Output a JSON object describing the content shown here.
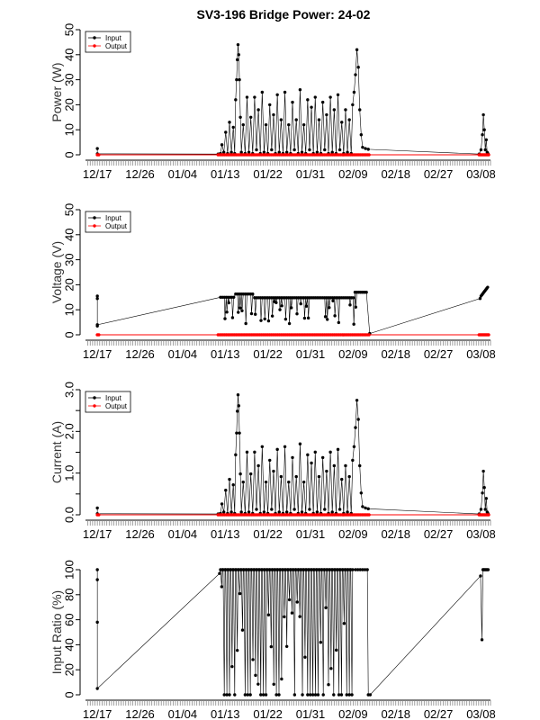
{
  "chart_data": {
    "type": "line",
    "title": "SV3-196 Bridge Power: 24-02",
    "x_tick_labels": [
      "12/17",
      "12/26",
      "01/04",
      "01/13",
      "01/22",
      "01/31",
      "02/09",
      "02/18",
      "02/27",
      "03/08"
    ],
    "x_tick_days": [
      0,
      9,
      18,
      27,
      36,
      45,
      54,
      63,
      72,
      81
    ],
    "x_range_days": [
      -2.5,
      83
    ],
    "legend": [
      "Input",
      "Output"
    ],
    "colors": {
      "input": "#000000",
      "output": "#ff0000",
      "axis": "#000000",
      "tickband": "#888888"
    },
    "panels": [
      {
        "name": "power",
        "ylabel": "Power (W)",
        "ylim": [
          0,
          50
        ],
        "yticks": [
          0,
          10,
          20,
          30,
          40,
          50
        ],
        "ytick_labels": [
          "0",
          "10",
          "20",
          "30",
          "40",
          "50"
        ],
        "gen": "power",
        "input_points": [
          [
            0,
            2.5
          ],
          [
            0,
            0.4
          ],
          [
            25.5,
            0.3
          ],
          [
            26,
            0.5
          ],
          [
            26.3,
            4
          ],
          [
            26.7,
            1
          ],
          [
            27.1,
            9
          ],
          [
            27.5,
            0.5
          ],
          [
            27.9,
            13
          ],
          [
            28.3,
            1
          ],
          [
            28.7,
            11
          ],
          [
            29,
            0.5
          ],
          [
            29.2,
            22
          ],
          [
            29.4,
            30
          ],
          [
            29.55,
            38
          ],
          [
            29.7,
            44
          ],
          [
            29.85,
            40
          ],
          [
            30,
            30
          ],
          [
            30.2,
            15
          ],
          [
            30.4,
            1
          ],
          [
            30.8,
            12
          ],
          [
            31.2,
            0.5
          ],
          [
            31.6,
            23
          ],
          [
            32,
            1
          ],
          [
            32.4,
            15
          ],
          [
            32.8,
            0.5
          ],
          [
            33.2,
            23
          ],
          [
            33.6,
            2
          ],
          [
            34,
            18
          ],
          [
            34.4,
            0.5
          ],
          [
            34.8,
            25
          ],
          [
            35.2,
            1
          ],
          [
            35.6,
            12
          ],
          [
            36,
            0.5
          ],
          [
            36.4,
            20
          ],
          [
            36.8,
            2
          ],
          [
            37.2,
            16
          ],
          [
            37.6,
            0.5
          ],
          [
            38,
            24
          ],
          [
            38.4,
            1
          ],
          [
            38.8,
            14
          ],
          [
            39.2,
            0.5
          ],
          [
            39.6,
            25
          ],
          [
            40,
            1
          ],
          [
            40.4,
            12
          ],
          [
            40.8,
            0.5
          ],
          [
            41.2,
            21
          ],
          [
            41.6,
            2
          ],
          [
            42,
            14
          ],
          [
            42.4,
            0.5
          ],
          [
            42.8,
            26
          ],
          [
            43.2,
            1
          ],
          [
            43.6,
            12
          ],
          [
            44,
            0.5
          ],
          [
            44.4,
            22
          ],
          [
            44.8,
            2
          ],
          [
            45.2,
            19
          ],
          [
            45.6,
            0.5
          ],
          [
            46,
            23
          ],
          [
            46.4,
            1
          ],
          [
            46.8,
            14
          ],
          [
            47.2,
            0.5
          ],
          [
            47.6,
            21
          ],
          [
            48,
            2
          ],
          [
            48.4,
            16
          ],
          [
            48.8,
            0.5
          ],
          [
            49.2,
            23
          ],
          [
            49.6,
            1
          ],
          [
            50,
            18
          ],
          [
            50.4,
            0.5
          ],
          [
            50.8,
            24
          ],
          [
            51.2,
            2
          ],
          [
            51.6,
            13
          ],
          [
            52,
            0.5
          ],
          [
            52.4,
            18
          ],
          [
            52.8,
            1
          ],
          [
            53.2,
            14
          ],
          [
            53.6,
            0.5
          ],
          [
            53.9,
            20
          ],
          [
            54.2,
            25
          ],
          [
            54.5,
            32
          ],
          [
            54.8,
            42
          ],
          [
            55.1,
            35
          ],
          [
            55.4,
            18
          ],
          [
            55.7,
            8
          ],
          [
            56,
            3
          ],
          [
            56.6,
            2.5
          ],
          [
            57.2,
            2.2
          ],
          [
            80.6,
            0.3
          ],
          [
            81,
            2
          ],
          [
            81.3,
            8
          ],
          [
            81.5,
            16
          ],
          [
            81.7,
            10
          ],
          [
            81.9,
            2
          ],
          [
            82.1,
            6
          ],
          [
            82.3,
            1
          ],
          [
            82.5,
            0.4
          ]
        ],
        "output_y": 0
      },
      {
        "name": "voltage",
        "ylabel": "Voltage (V)",
        "ylim": [
          0,
          50
        ],
        "yticks": [
          0,
          10,
          20,
          30,
          40,
          50
        ],
        "ytick_labels": [
          "0",
          "10",
          "20",
          "30",
          "40",
          "50"
        ],
        "gen": "voltage",
        "input_points": [
          [
            0,
            3.5
          ],
          [
            0,
            15.5
          ],
          [
            0,
            14.5
          ],
          [
            0,
            4
          ]
        ],
        "output_y": 0
      },
      {
        "name": "current",
        "ylabel": "Current (A)",
        "ylim": [
          0,
          3.0
        ],
        "yticks": [
          0,
          0.5,
          1.0,
          1.5,
          2.0,
          2.5,
          3.0
        ],
        "ytick_labels": [
          "0.0",
          "",
          "1.0",
          "",
          "2.0",
          "",
          "3.0"
        ],
        "gen": "current",
        "input_points": [],
        "output_y": 0
      },
      {
        "name": "ratio",
        "ylabel": "Input Ratio (%)",
        "ylim": [
          0,
          100
        ],
        "yticks": [
          0,
          20,
          40,
          60,
          80,
          100
        ],
        "ytick_labels": [
          "0",
          "20",
          "40",
          "60",
          "80",
          "100"
        ],
        "gen": "ratio",
        "input_points": [
          [
            0,
            58
          ],
          [
            0,
            100
          ],
          [
            0,
            92
          ],
          [
            0,
            5
          ]
        ],
        "output_y": null
      }
    ]
  }
}
